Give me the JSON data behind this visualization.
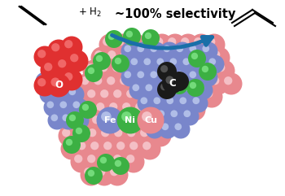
{
  "bg_color": "#ffffff",
  "title_text": "~100% selectivity",
  "title_fontsize": 10.5,
  "title_fontweight": "bold",
  "arrow_color": "#1a6fa8",
  "atom_colors": {
    "Cu": "#e8888e",
    "Fe_blue": "#7986cb",
    "Ni_green": "#3cb043",
    "O_red": "#e03030",
    "C_dark": "#1a1a1a"
  },
  "cu_r": 14,
  "fe_r": 12,
  "ni_r": 13,
  "o_r": 14,
  "c_r": 12,
  "green_r": 11,
  "label_r": 15
}
